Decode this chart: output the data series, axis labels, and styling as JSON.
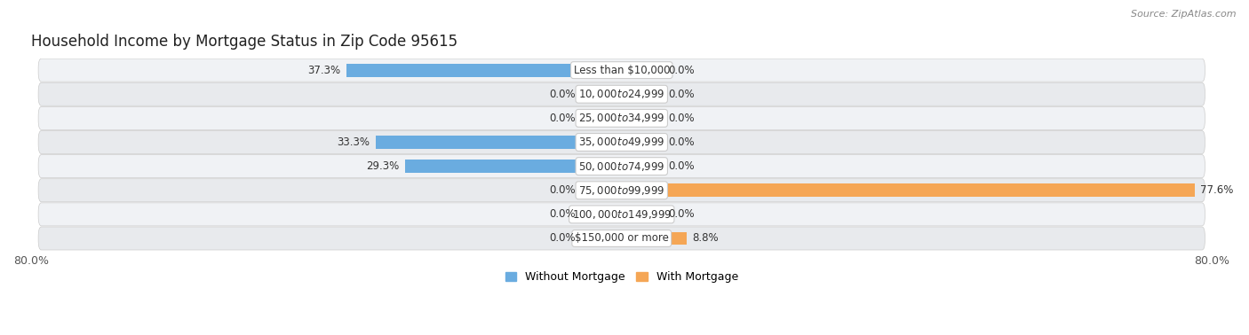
{
  "title": "Household Income by Mortgage Status in Zip Code 95615",
  "source": "Source: ZipAtlas.com",
  "categories": [
    "Less than $10,000",
    "$10,000 to $24,999",
    "$25,000 to $34,999",
    "$35,000 to $49,999",
    "$50,000 to $74,999",
    "$75,000 to $99,999",
    "$100,000 to $149,999",
    "$150,000 or more"
  ],
  "without_mortgage": [
    37.3,
    0.0,
    0.0,
    33.3,
    29.3,
    0.0,
    0.0,
    0.0
  ],
  "with_mortgage": [
    0.0,
    0.0,
    0.0,
    0.0,
    0.0,
    77.6,
    0.0,
    8.8
  ],
  "without_mortgage_color": "#6aace0",
  "with_mortgage_color": "#f5a655",
  "without_mortgage_light": "#b8d0ea",
  "with_mortgage_light": "#f5d4a8",
  "stub_val": 5.5,
  "bar_height": 0.55,
  "xlim_left": -80.0,
  "xlim_right": 80.0,
  "bg_color": "#ffffff",
  "row_colors": [
    "#f0f2f5",
    "#e8eaed"
  ],
  "title_fontsize": 12,
  "label_fontsize": 8.5,
  "source_fontsize": 8,
  "tick_fontsize": 9,
  "value_fontsize": 8.5,
  "cat_fontsize": 8.5
}
